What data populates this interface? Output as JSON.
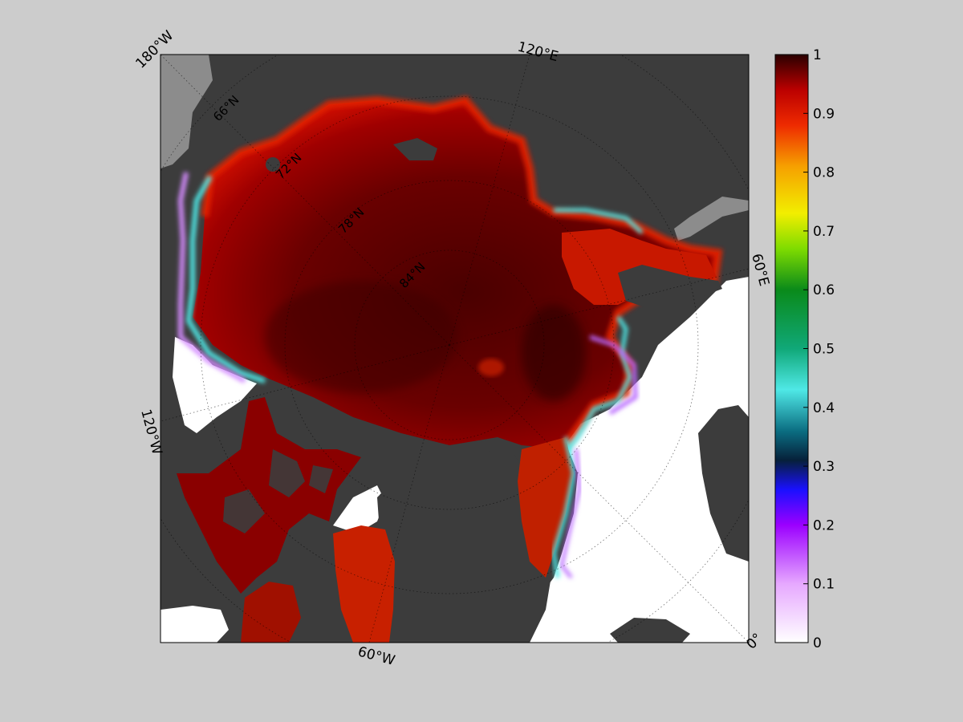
{
  "map": {
    "projection": "north-polar-stereographic",
    "variable_type": "sea ice concentration",
    "lon_labels": [
      "180°W",
      "120°E",
      "60°E",
      "0°",
      "60°W",
      "120°W"
    ],
    "lat_labels": [
      "66°N",
      "72°N",
      "78°N",
      "84°N"
    ],
    "colors": {
      "ocean_open": "#ffffff",
      "land": "#3c3c3c",
      "land_masked": "#8c8c8c",
      "ice_high": "#5a0000",
      "ice_mid": "#b00000"
    }
  },
  "colorbar": {
    "min": 0,
    "max": 1,
    "tick_labels": [
      "0",
      "0.1",
      "0.2",
      "0.3",
      "0.4",
      "0.5",
      "0.6",
      "0.7",
      "0.8",
      "0.9",
      "1"
    ],
    "stops": [
      {
        "v": 0.0,
        "c": "#ffffff"
      },
      {
        "v": 0.1,
        "c": "#e6a8ff"
      },
      {
        "v": 0.2,
        "c": "#9b00ff"
      },
      {
        "v": 0.26,
        "c": "#1a10ff"
      },
      {
        "v": 0.31,
        "c": "#06203a"
      },
      {
        "v": 0.36,
        "c": "#0b6e82"
      },
      {
        "v": 0.43,
        "c": "#4fe8e6"
      },
      {
        "v": 0.5,
        "c": "#10a878"
      },
      {
        "v": 0.6,
        "c": "#0a8a1a"
      },
      {
        "v": 0.67,
        "c": "#7fdc00"
      },
      {
        "v": 0.73,
        "c": "#f2ee00"
      },
      {
        "v": 0.81,
        "c": "#f6a000"
      },
      {
        "v": 0.88,
        "c": "#ee2a00"
      },
      {
        "v": 0.94,
        "c": "#bb0000"
      },
      {
        "v": 1.0,
        "c": "#2a0000"
      }
    ]
  }
}
